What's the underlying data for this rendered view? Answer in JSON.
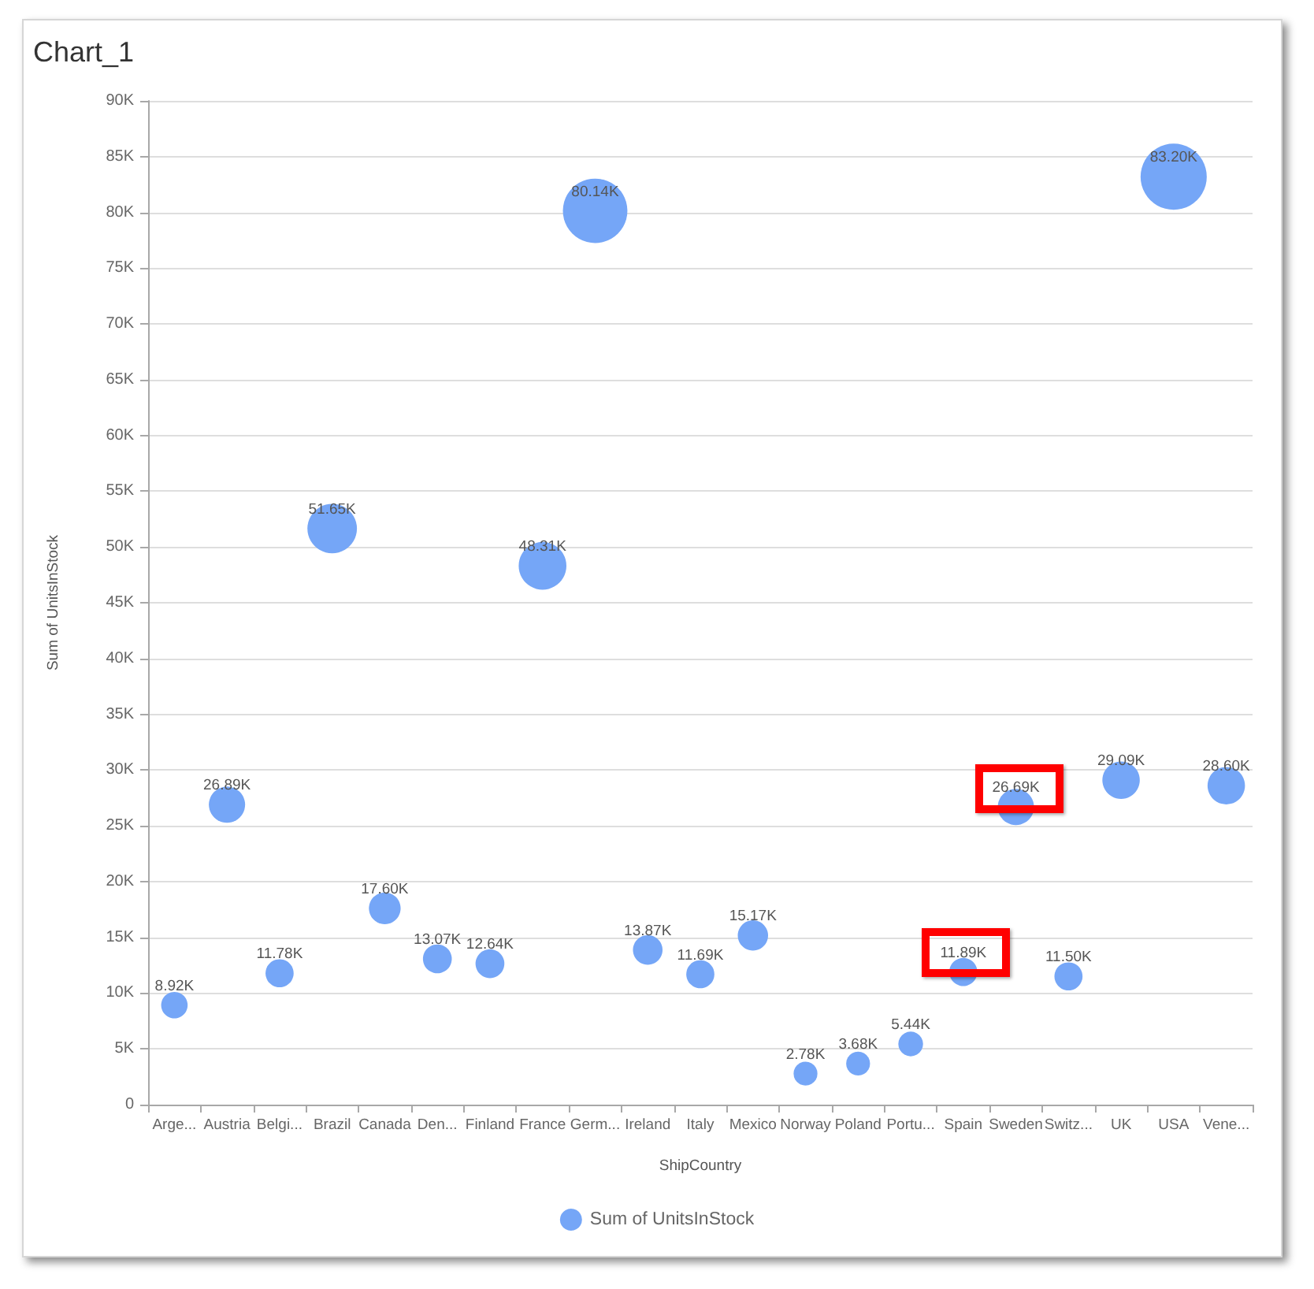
{
  "chart_data": {
    "type": "bubble",
    "title": "Chart_1",
    "xlabel": "ShipCountry",
    "ylabel": "Sum of UnitsInStock",
    "categories": [
      "Arge...",
      "Austria",
      "Belgi...",
      "Brazil",
      "Canada",
      "Den...",
      "Finland",
      "France",
      "Germ...",
      "Ireland",
      "Italy",
      "Mexico",
      "Norway",
      "Poland",
      "Portu...",
      "Spain",
      "Sweden",
      "Switz...",
      "UK",
      "USA",
      "Vene..."
    ],
    "series": [
      {
        "name": "Sum of UnitsInStock",
        "color": "#75a6f7",
        "values": [
          8920,
          26890,
          11780,
          51650,
          17600,
          13070,
          12640,
          48310,
          80140,
          13870,
          11690,
          15170,
          2780,
          3680,
          5440,
          11890,
          26690,
          11500,
          29090,
          83200,
          28600
        ],
        "sizes": [
          0.16,
          0.3,
          0.18,
          0.56,
          0.23,
          0.19,
          0.19,
          0.52,
          0.95,
          0.2,
          0.18,
          0.21,
          0.13,
          0.13,
          0.14,
          0.18,
          0.3,
          0.18,
          0.32,
          1,
          0.32
        ],
        "value_labels": [
          "8.92K",
          "26.89K",
          "11.78K",
          "51.65K",
          "17.60K",
          "13.07K",
          "12.64K",
          "48.31K",
          "80.14K",
          "13.87K",
          "11.69K",
          "15.17K",
          "2.78K",
          "3.68K",
          "5.44K",
          "11.89K",
          "26.69K",
          "11.50K",
          "29.09K",
          "83.20K",
          "28.60K"
        ]
      }
    ],
    "ylim": [
      0,
      90000
    ],
    "yticks": [
      0,
      {
        "value": 5000,
        "label": "5K"
      },
      {
        "value": 10000,
        "label": "10K"
      },
      {
        "value": 15000,
        "label": "15K"
      },
      {
        "value": 20000,
        "label": "20K"
      },
      {
        "value": 25000,
        "label": "25K"
      },
      {
        "value": 30000,
        "label": "30K"
      },
      {
        "value": 35000,
        "label": "35K"
      },
      {
        "value": 40000,
        "label": "40K"
      },
      {
        "value": 45000,
        "label": "45K"
      },
      {
        "value": 50000,
        "label": "50K"
      },
      {
        "value": 55000,
        "label": "55K"
      },
      {
        "value": 60000,
        "label": "60K"
      },
      {
        "value": 65000,
        "label": "65K"
      },
      {
        "value": 70000,
        "label": "70K"
      },
      {
        "value": 75000,
        "label": "75K"
      },
      {
        "value": 80000,
        "label": "80K"
      },
      {
        "value": 85000,
        "label": "85K"
      },
      {
        "value": 90000,
        "label": "90K"
      }
    ],
    "grid": "y",
    "legend": "bottom",
    "marker": "circle"
  }
}
